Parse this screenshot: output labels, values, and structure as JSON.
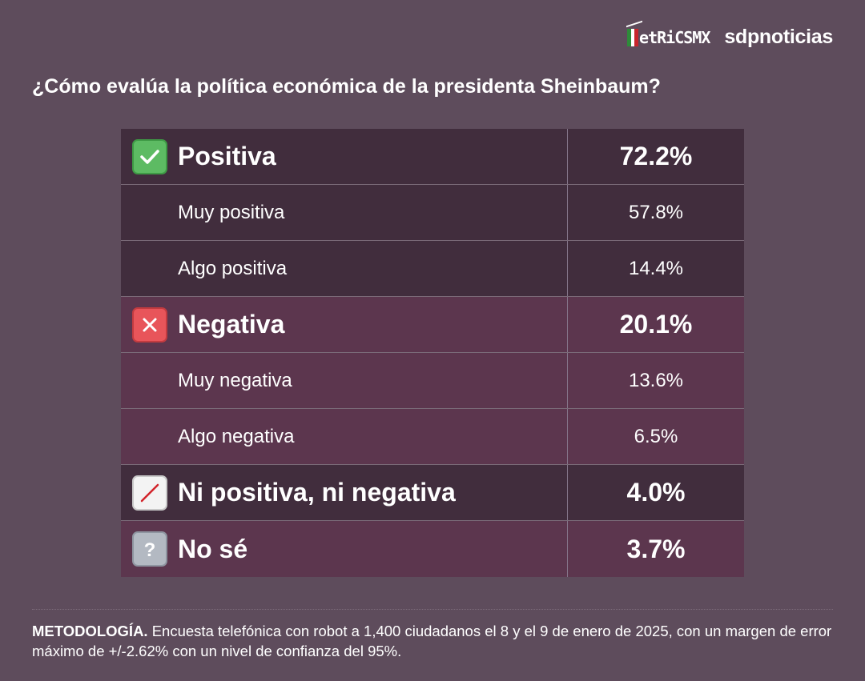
{
  "brand": {
    "metrics": "etRiCSMX",
    "sdp": "sdpnoticias"
  },
  "question": "¿Cómo evalúa la política económica de la presidenta Sheinbaum?",
  "colors": {
    "background": "#5e4c5c",
    "positive_row": "#412d3d",
    "negative_row": "#5c364e"
  },
  "chart_data": {
    "type": "table",
    "title": "¿Cómo evalúa la política económica de la presidenta Sheinbaum?",
    "categories": [
      "Positiva",
      "Muy positiva",
      "Algo positiva",
      "Negativa",
      "Muy negativa",
      "Algo negativa",
      "Ni positiva, ni negativa",
      "No sé"
    ],
    "values": [
      72.2,
      57.8,
      14.4,
      20.1,
      13.6,
      6.5,
      4.0,
      3.7
    ],
    "rows": [
      {
        "label": "Positiva",
        "value": "72.2%",
        "level": "major",
        "icon": "check-mark-icon"
      },
      {
        "label": "Muy positiva",
        "value": "57.8%",
        "level": "minor"
      },
      {
        "label": "Algo positiva",
        "value": "14.4%",
        "level": "minor"
      },
      {
        "label": "Negativa",
        "value": "20.1%",
        "level": "major",
        "icon": "cross-mark-icon"
      },
      {
        "label": "Muy negativa",
        "value": "13.6%",
        "level": "minor"
      },
      {
        "label": "Algo negativa",
        "value": "6.5%",
        "level": "minor"
      },
      {
        "label": "Ni positiva, ni negativa",
        "value": "4.0%",
        "level": "major",
        "icon": "slash-icon"
      },
      {
        "label": "No sé",
        "value": "3.7%",
        "level": "major",
        "icon": "question-mark-icon"
      }
    ]
  },
  "methodology": {
    "label": "METODOLOGÍA.",
    "text": " Encuesta telefónica con robot a 1,400 ciudadanos el 8 y el 9 de enero de 2025, con un margen de error máximo de +/-2.62% con un nivel de confianza del 95%."
  }
}
